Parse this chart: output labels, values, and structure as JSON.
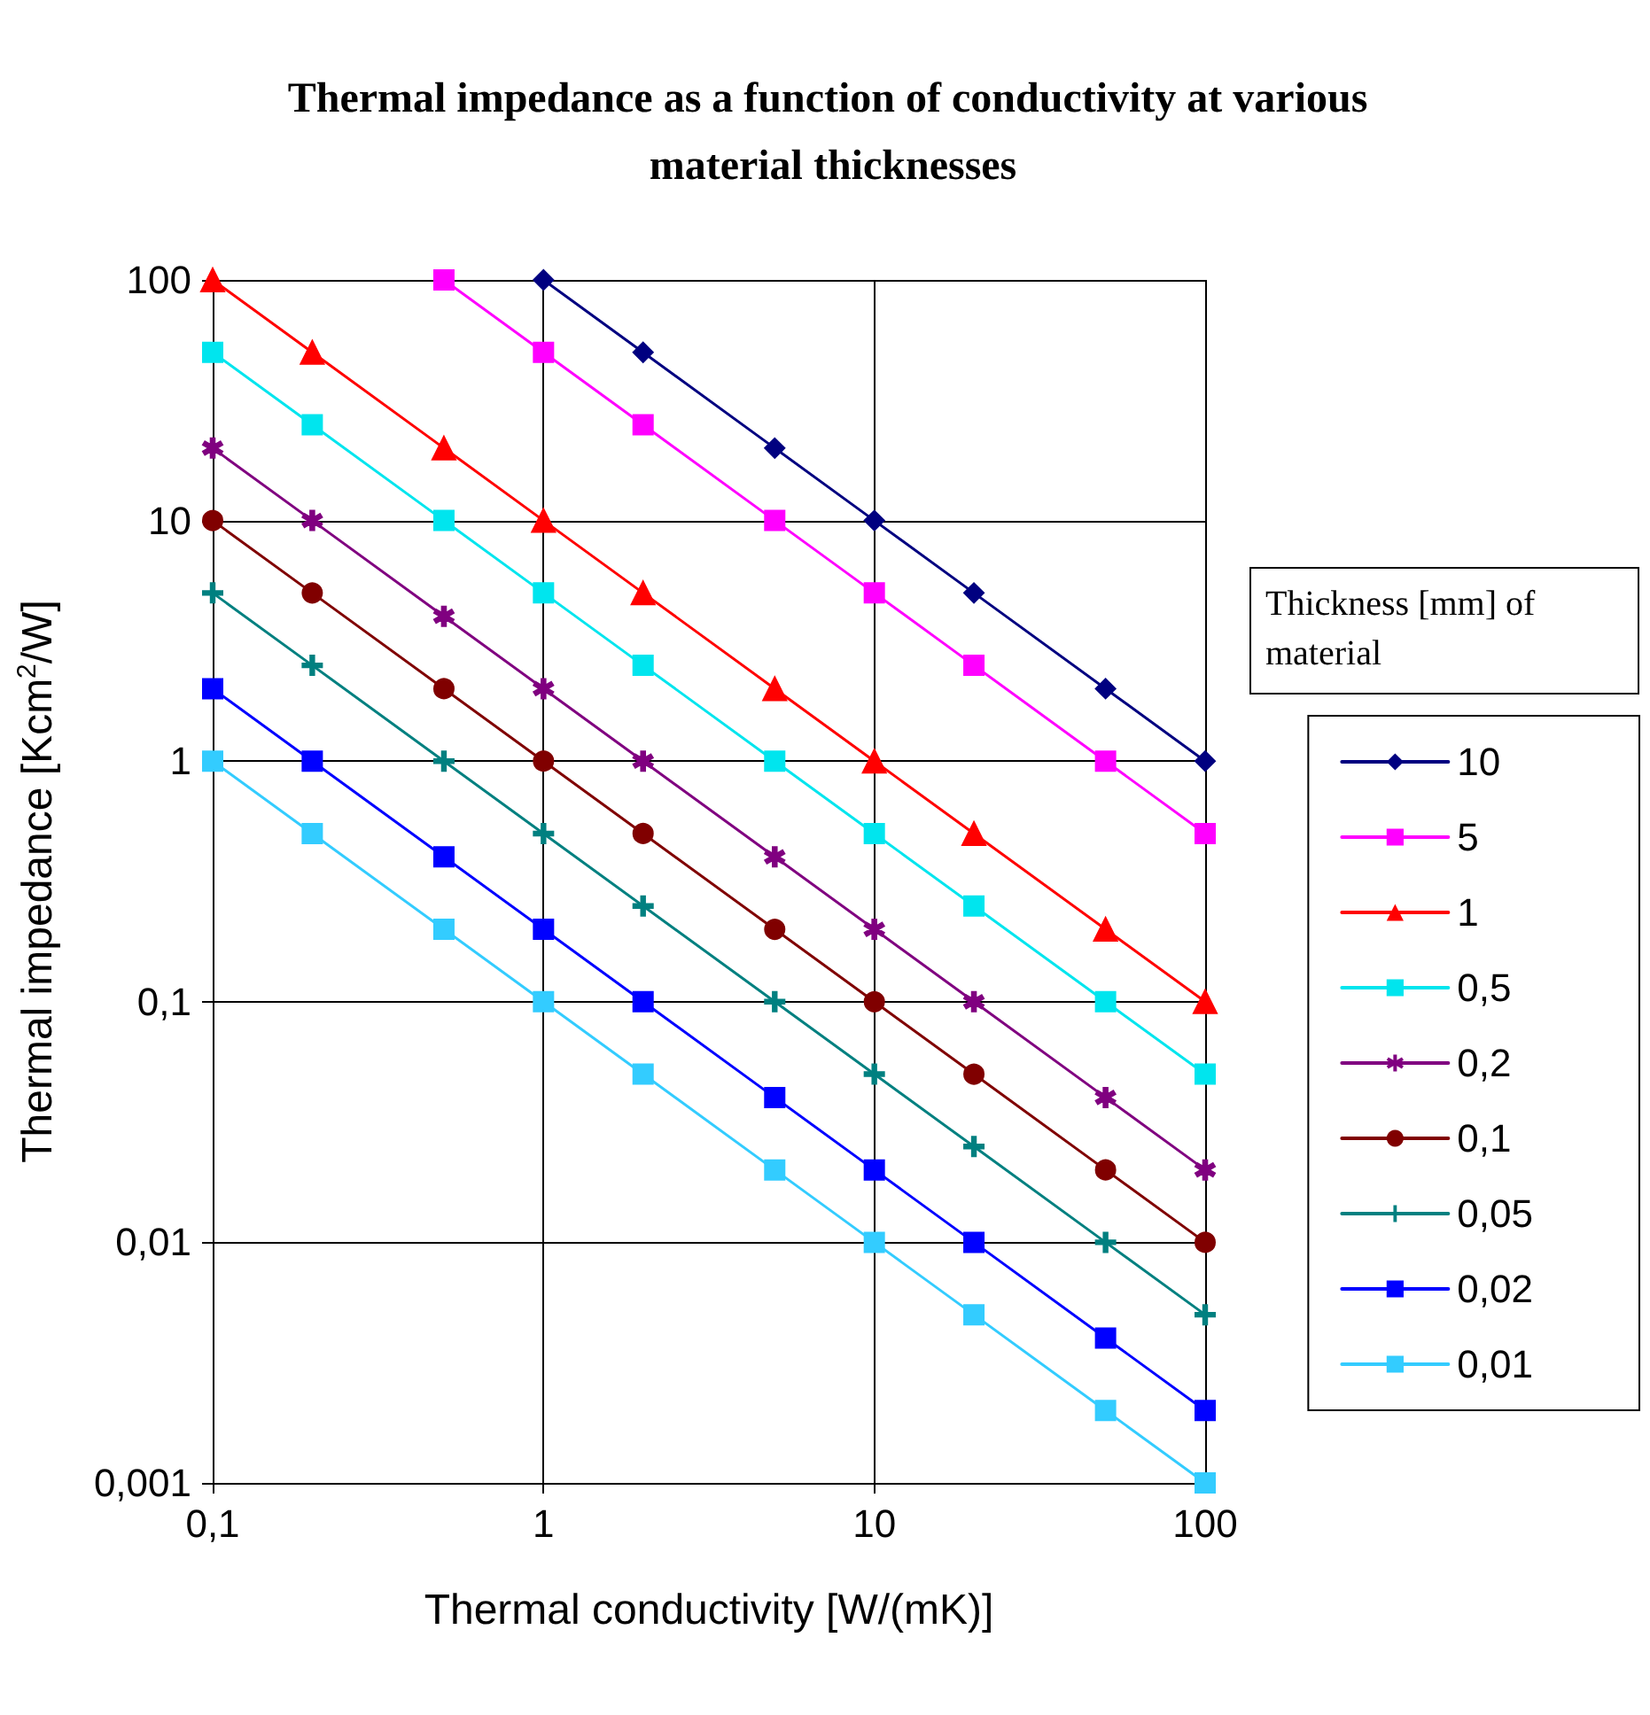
{
  "chart_data": {
    "type": "line",
    "title": "Thermal impedance as a function of conductivity at various material thicknesses",
    "xlabel": "Thermal conductivity [W/(mK)]",
    "ylabel": "Thermal impedance [Kcm$^{2}$/W]",
    "legend_title": "Thickness [mm] of material",
    "log": "xy",
    "grid": true,
    "legend": "right",
    "line_style": "solid",
    "x": [
      0.1,
      0.2,
      0.5,
      1,
      2,
      5,
      10,
      20,
      50,
      100
    ],
    "xlim": [
      0.1,
      100
    ],
    "xticks": [
      {
        "value": 0.1,
        "label": "0,1"
      },
      1,
      10,
      100
    ],
    "ylim": [
      0.001,
      100
    ],
    "yticks": [
      {
        "value": 0.001,
        "label": "0,001"
      },
      {
        "value": 0.01,
        "label": "0,01"
      },
      {
        "value": 0.1,
        "label": "0,1"
      },
      1,
      10,
      100
    ],
    "series": [
      {
        "name": "10",
        "color": "#000080",
        "marker": "diamond",
        "values": [
          null,
          null,
          null,
          100,
          50,
          20,
          10,
          5,
          2,
          1
        ]
      },
      {
        "name": "5",
        "color": "#ff00ff",
        "marker": "square",
        "values": [
          null,
          null,
          100,
          50,
          25,
          10,
          5,
          2.5,
          1,
          0.5
        ]
      },
      {
        "name": "1",
        "color": "#ff0000",
        "marker": "triangle",
        "values": [
          100,
          50,
          20,
          10,
          5,
          2,
          1,
          0.5,
          0.2,
          0.1
        ]
      },
      {
        "name": "0,5",
        "color": "#00e5ee",
        "marker": "square",
        "values": [
          50,
          25,
          10,
          5,
          2.5,
          1,
          0.5,
          0.25,
          0.1,
          0.05
        ]
      },
      {
        "name": "0,2",
        "color": "#800080",
        "marker": "star",
        "values": [
          20,
          10,
          4,
          2,
          1,
          0.4,
          0.2,
          0.1,
          0.04,
          0.02
        ]
      },
      {
        "name": "0,1",
        "color": "#800000",
        "marker": "circle",
        "values": [
          10,
          5,
          2,
          1,
          0.5,
          0.2,
          0.1,
          0.05,
          0.02,
          0.01
        ]
      },
      {
        "name": "0,05",
        "color": "#008080",
        "marker": "cross",
        "values": [
          5,
          2.5,
          1,
          0.5,
          0.25,
          0.1,
          0.05,
          0.025,
          0.01,
          0.005
        ]
      },
      {
        "name": "0,02",
        "color": "#0000ff",
        "marker": "square",
        "values": [
          2,
          1,
          0.4,
          0.2,
          0.1,
          0.04,
          0.02,
          0.01,
          0.004,
          0.002
        ]
      },
      {
        "name": "0,01",
        "color": "#33ccff",
        "marker": "square",
        "values": [
          1,
          0.5,
          0.2,
          0.1,
          0.05,
          0.02,
          0.01,
          0.005,
          0.002,
          0.001
        ]
      }
    ]
  }
}
